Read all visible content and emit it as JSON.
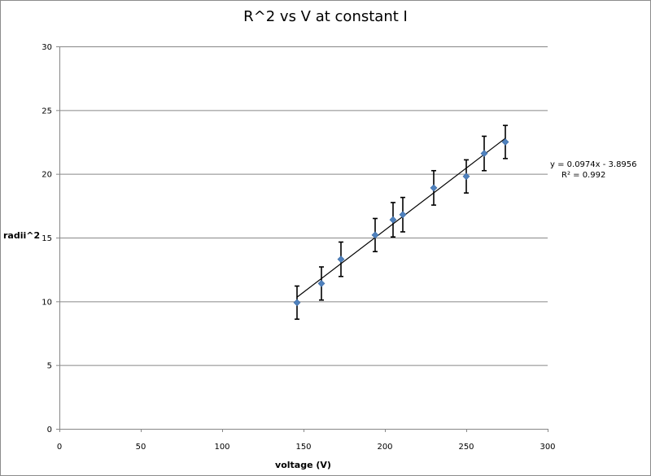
{
  "chart_data": {
    "type": "scatter",
    "title": "R^2 vs V at constant I",
    "xlabel": "voltage (V)",
    "ylabel": "radii^2",
    "xlim": [
      0,
      300
    ],
    "ylim": [
      0,
      30
    ],
    "xticks": [
      0,
      50,
      100,
      150,
      200,
      250,
      300
    ],
    "yticks": [
      0,
      5,
      10,
      15,
      20,
      25,
      30
    ],
    "grid": "horizontal major gridlines",
    "legend": "none",
    "series": [
      {
        "color": "#4f81bd",
        "marker": "diamond",
        "points": [
          {
            "x": 146,
            "y": 9.9,
            "err": 1.3
          },
          {
            "x": 161,
            "y": 11.4,
            "err": 1.3
          },
          {
            "x": 173,
            "y": 13.3,
            "err": 1.35
          },
          {
            "x": 194,
            "y": 15.2,
            "err": 1.3
          },
          {
            "x": 205,
            "y": 16.4,
            "err": 1.35
          },
          {
            "x": 211,
            "y": 16.8,
            "err": 1.35
          },
          {
            "x": 230,
            "y": 18.9,
            "err": 1.35
          },
          {
            "x": 250,
            "y": 19.8,
            "err": 1.3
          },
          {
            "x": 261,
            "y": 21.6,
            "err": 1.35
          },
          {
            "x": 274,
            "y": 22.5,
            "err": 1.3
          }
        ]
      }
    ],
    "trendline": {
      "type": "linear",
      "slope": 0.0974,
      "intercept": -3.8956,
      "x_range": [
        146,
        274
      ],
      "color": "#000000",
      "equation_label": "y = 0.0974x - 3.8956",
      "r2_label": "R² = 0.992"
    },
    "colors": {
      "gridline": "#878787",
      "axis": "#878787",
      "error_bar": "#000000"
    }
  }
}
